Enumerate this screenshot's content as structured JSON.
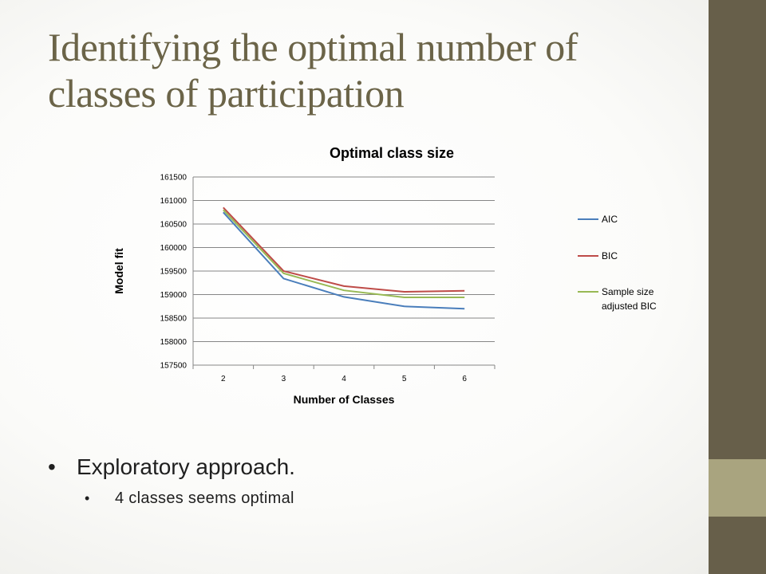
{
  "slide": {
    "title": "Identifying the optimal number of classes of participation",
    "bullets": [
      {
        "text": "Exploratory approach.",
        "level": 1
      },
      {
        "text": "4 classes seems optimal",
        "level": 2
      }
    ],
    "bullet_glyph": "•",
    "colors": {
      "title": "#6b6448",
      "sidebar": "#675f4a",
      "sidebar_accent": "#a9a47f"
    }
  },
  "chart_data": {
    "type": "line",
    "title": "Optimal class size",
    "xlabel": "Number of Classes",
    "ylabel": "Model fit",
    "categories": [
      "2",
      "3",
      "4",
      "5",
      "6"
    ],
    "ylim": [
      157500,
      161500
    ],
    "yticks": [
      "157500",
      "158000",
      "158500",
      "159000",
      "159500",
      "160000",
      "160500",
      "161000",
      "161500"
    ],
    "grid": true,
    "legend_position": "right",
    "series": [
      {
        "name": "AIC",
        "color": "#4a7ebb",
        "values": [
          160750,
          159340,
          158950,
          158750,
          158700
        ]
      },
      {
        "name": "BIC",
        "color": "#be4b48",
        "values": [
          160850,
          159500,
          159180,
          159060,
          159080
        ]
      },
      {
        "name": "Sample size adjusted BIC",
        "color": "#98b954",
        "values": [
          160800,
          159450,
          159090,
          158940,
          158940
        ]
      }
    ]
  }
}
